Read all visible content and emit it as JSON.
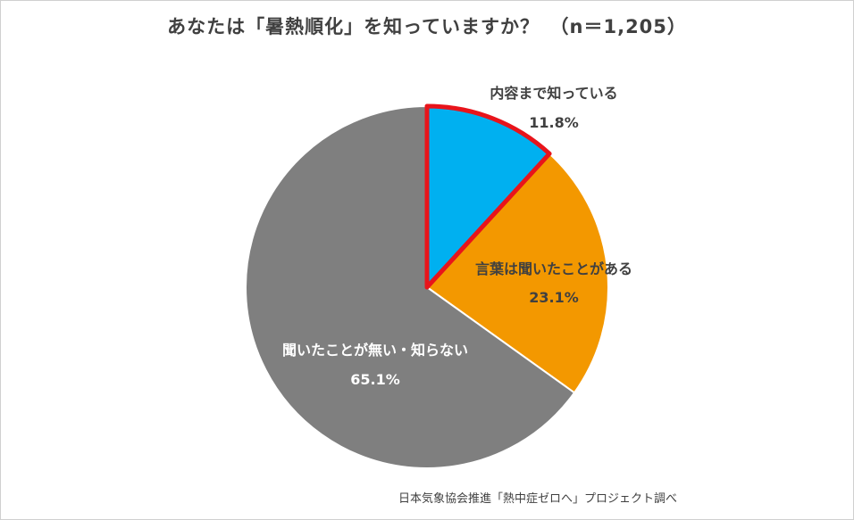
{
  "chart_data": {
    "type": "pie",
    "title": "あなたは「暑熱順化」を知っていますか？　（n＝1,205）",
    "source": "日本気象協会推進「熱中症ゼロへ」プロジェクト調べ",
    "slices": [
      {
        "label": "内容まで知っている",
        "value": 11.8,
        "value_label": "11.8%",
        "color": "#00b0f0",
        "highlight": true,
        "highlight_color": "#e8141b",
        "label_color": "#404040"
      },
      {
        "label": "言葉は聞いたことがある",
        "value": 23.1,
        "value_label": "23.1%",
        "color": "#f39800",
        "highlight": false,
        "label_color": "#404040"
      },
      {
        "label": "聞いたことが無い・知らない",
        "value": 65.1,
        "value_label": "65.1%",
        "color": "#7f7f7f",
        "highlight": false,
        "label_color": "#ffffff"
      }
    ],
    "start_angle": "12 o'clock",
    "direction": "clockwise",
    "legend": "none"
  }
}
